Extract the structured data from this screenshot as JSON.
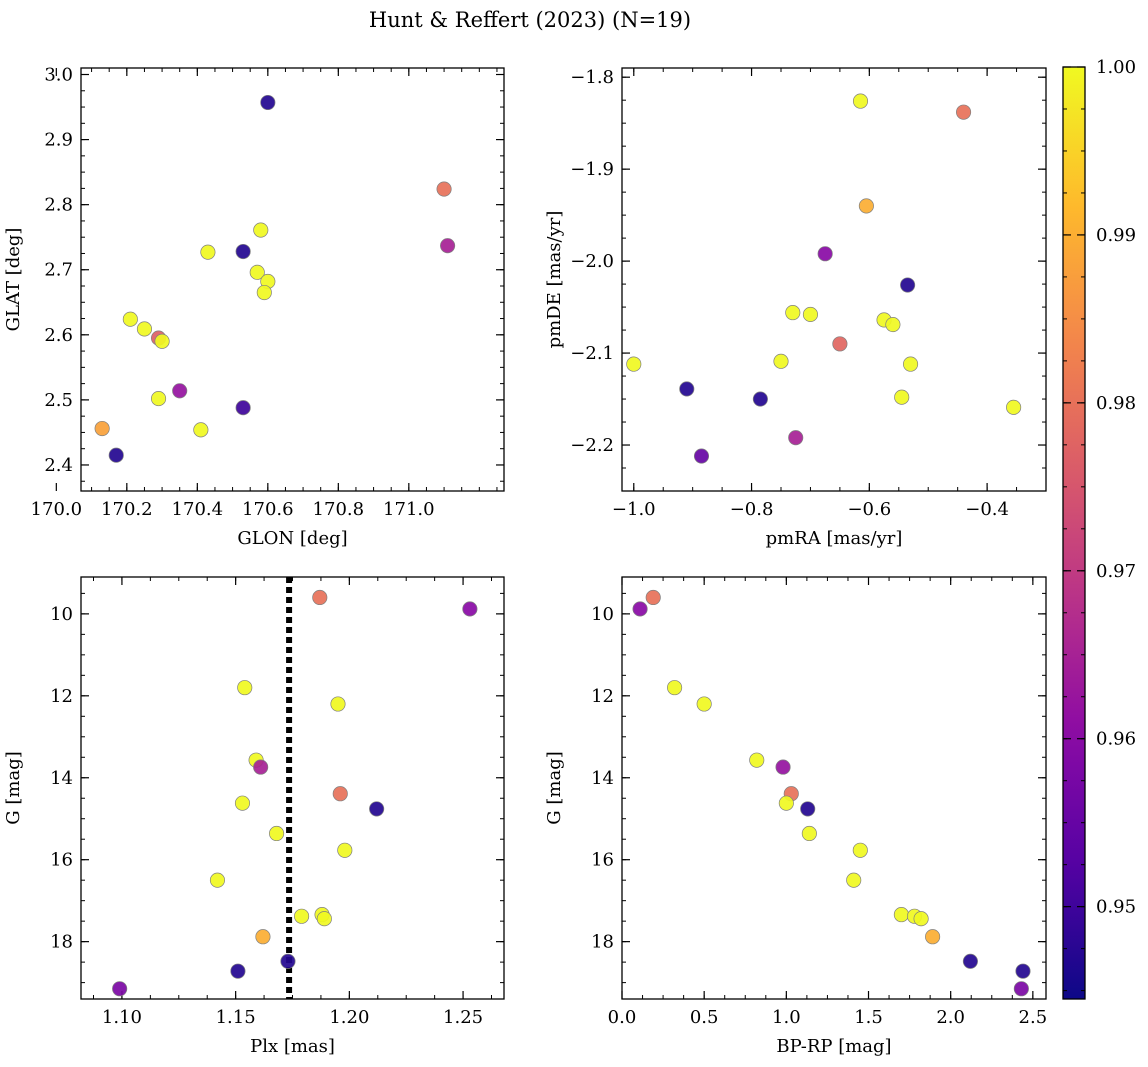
{
  "figure": {
    "title": "Hunt & Reffert (2023) (N=19)"
  },
  "colors": {
    "colormap": "plasma",
    "marker_edge": "#808080",
    "reference_line": "#000000"
  },
  "colorbar": {
    "vmin": 0.9445,
    "vmax": 1.0,
    "ticks": [
      0.95,
      0.96,
      0.97,
      0.98,
      0.99,
      1.0
    ],
    "tick_labels": [
      "0.95",
      "0.96",
      "0.97",
      "0.98",
      "0.99",
      "1.00"
    ]
  },
  "chart_data": [
    {
      "type": "scatter",
      "title": "",
      "xlabel": "GLON [deg]",
      "ylabel": "GLAT [deg]",
      "xlim": [
        170.07,
        171.27
      ],
      "ylim": [
        2.36,
        3.01
      ],
      "xticks": [
        170.0,
        170.2,
        170.4,
        170.6,
        170.8,
        171.0
      ],
      "xtick_labels": [
        "170.0",
        "170.2",
        "170.4",
        "170.6",
        "170.8",
        "171.0"
      ],
      "yticks": [
        2.4,
        2.5,
        2.6,
        2.7,
        2.8,
        2.9,
        3.0
      ],
      "ytick_labels": [
        "2.4",
        "2.5",
        "2.6",
        "2.7",
        "2.8",
        "2.9",
        "3.0"
      ],
      "grid": false,
      "points": [
        {
          "x": 170.13,
          "y": 2.456,
          "c": 0.988
        },
        {
          "x": 170.17,
          "y": 2.415,
          "c": 0.947
        },
        {
          "x": 170.21,
          "y": 2.624,
          "c": 1.0
        },
        {
          "x": 170.25,
          "y": 2.609,
          "c": 1.0
        },
        {
          "x": 170.29,
          "y": 2.595,
          "c": 0.977
        },
        {
          "x": 170.3,
          "y": 2.59,
          "c": 1.0
        },
        {
          "x": 170.29,
          "y": 2.502,
          "c": 1.0
        },
        {
          "x": 170.35,
          "y": 2.514,
          "c": 0.962
        },
        {
          "x": 170.41,
          "y": 2.454,
          "c": 1.0
        },
        {
          "x": 170.43,
          "y": 2.727,
          "c": 1.0
        },
        {
          "x": 170.53,
          "y": 2.728,
          "c": 0.947
        },
        {
          "x": 170.53,
          "y": 2.488,
          "c": 0.95
        },
        {
          "x": 170.58,
          "y": 2.761,
          "c": 1.0
        },
        {
          "x": 170.57,
          "y": 2.696,
          "c": 1.0
        },
        {
          "x": 170.6,
          "y": 2.682,
          "c": 1.0
        },
        {
          "x": 170.59,
          "y": 2.665,
          "c": 1.0
        },
        {
          "x": 170.6,
          "y": 2.957,
          "c": 0.947
        },
        {
          "x": 171.1,
          "y": 2.824,
          "c": 0.98
        },
        {
          "x": 171.11,
          "y": 2.737,
          "c": 0.965
        }
      ]
    },
    {
      "type": "scatter",
      "title": "",
      "xlabel": "pmRA [mas/yr]",
      "ylabel": "pmDE [mas/yr]",
      "xlim": [
        -1.02,
        -0.3
      ],
      "ylim": [
        -2.25,
        -1.79
      ],
      "xticks": [
        -1.0,
        -0.8,
        -0.6,
        -0.4
      ],
      "xtick_labels": [
        "−1.0",
        "−0.8",
        "−0.6",
        "−0.4"
      ],
      "yticks": [
        -2.2,
        -2.1,
        -2.0,
        -1.9,
        -1.8
      ],
      "ytick_labels": [
        "−2.2",
        "−2.1",
        "−2.0",
        "−1.9",
        "−1.8"
      ],
      "grid": false,
      "points": [
        {
          "x": -1.0,
          "y": -2.112,
          "c": 1.0
        },
        {
          "x": -0.91,
          "y": -2.139,
          "c": 0.947
        },
        {
          "x": -0.885,
          "y": -2.212,
          "c": 0.955
        },
        {
          "x": -0.785,
          "y": -2.15,
          "c": 0.947
        },
        {
          "x": -0.75,
          "y": -2.109,
          "c": 1.0
        },
        {
          "x": -0.73,
          "y": -2.056,
          "c": 1.0
        },
        {
          "x": -0.725,
          "y": -2.192,
          "c": 0.965
        },
        {
          "x": -0.7,
          "y": -2.058,
          "c": 1.0
        },
        {
          "x": -0.675,
          "y": -1.992,
          "c": 0.96
        },
        {
          "x": -0.65,
          "y": -2.09,
          "c": 0.978
        },
        {
          "x": -0.615,
          "y": -1.826,
          "c": 1.0
        },
        {
          "x": -0.605,
          "y": -1.94,
          "c": 0.99
        },
        {
          "x": -0.575,
          "y": -2.064,
          "c": 1.0
        },
        {
          "x": -0.56,
          "y": -2.069,
          "c": 1.0
        },
        {
          "x": -0.545,
          "y": -2.148,
          "c": 1.0
        },
        {
          "x": -0.535,
          "y": -2.026,
          "c": 0.947
        },
        {
          "x": -0.53,
          "y": -2.112,
          "c": 1.0
        },
        {
          "x": -0.44,
          "y": -1.838,
          "c": 0.98
        },
        {
          "x": -0.355,
          "y": -2.159,
          "c": 1.0
        }
      ]
    },
    {
      "type": "scatter",
      "title": "",
      "xlabel": "Plx [mas]",
      "ylabel": "G [mag]",
      "xlim": [
        1.082,
        1.268
      ],
      "ylim": [
        19.4,
        9.1
      ],
      "y_inverted": true,
      "xticks": [
        1.1,
        1.15,
        1.2,
        1.25
      ],
      "xtick_labels": [
        "1.10",
        "1.15",
        "1.20",
        "1.25"
      ],
      "yticks": [
        10,
        12,
        14,
        16,
        18
      ],
      "ytick_labels": [
        "10",
        "12",
        "14",
        "16",
        "18"
      ],
      "grid": false,
      "reference_line": {
        "orientation": "vertical",
        "x": 1.1735,
        "style": "dotted"
      },
      "points": [
        {
          "x": 1.187,
          "y": 9.6,
          "c": 0.98
        },
        {
          "x": 1.253,
          "y": 9.88,
          "c": 0.96
        },
        {
          "x": 1.154,
          "y": 11.8,
          "c": 1.0
        },
        {
          "x": 1.195,
          "y": 12.2,
          "c": 1.0
        },
        {
          "x": 1.159,
          "y": 13.57,
          "c": 1.0
        },
        {
          "x": 1.161,
          "y": 13.74,
          "c": 0.965
        },
        {
          "x": 1.196,
          "y": 14.39,
          "c": 0.98
        },
        {
          "x": 1.153,
          "y": 14.62,
          "c": 1.0
        },
        {
          "x": 1.212,
          "y": 14.76,
          "c": 0.947
        },
        {
          "x": 1.168,
          "y": 15.36,
          "c": 1.0
        },
        {
          "x": 1.198,
          "y": 15.77,
          "c": 1.0
        },
        {
          "x": 1.142,
          "y": 16.5,
          "c": 1.0
        },
        {
          "x": 1.179,
          "y": 17.38,
          "c": 1.0
        },
        {
          "x": 1.188,
          "y": 17.34,
          "c": 1.0
        },
        {
          "x": 1.189,
          "y": 17.44,
          "c": 1.0
        },
        {
          "x": 1.162,
          "y": 17.88,
          "c": 0.99
        },
        {
          "x": 1.173,
          "y": 18.48,
          "c": 0.947
        },
        {
          "x": 1.151,
          "y": 18.72,
          "c": 0.947
        },
        {
          "x": 1.099,
          "y": 19.15,
          "c": 0.958
        }
      ]
    },
    {
      "type": "scatter",
      "title": "",
      "xlabel": "BP-RP [mag]",
      "ylabel": "G [mag]",
      "xlim": [
        0.0,
        2.58
      ],
      "ylim": [
        19.4,
        9.1
      ],
      "y_inverted": true,
      "xticks": [
        0.0,
        0.5,
        1.0,
        1.5,
        2.0,
        2.5
      ],
      "xtick_labels": [
        "0.0",
        "0.5",
        "1.0",
        "1.5",
        "2.0",
        "2.5"
      ],
      "yticks": [
        10,
        12,
        14,
        16,
        18
      ],
      "ytick_labels": [
        "10",
        "12",
        "14",
        "16",
        "18"
      ],
      "grid": false,
      "points": [
        {
          "x": 0.11,
          "y": 9.88,
          "c": 0.96
        },
        {
          "x": 0.19,
          "y": 9.6,
          "c": 0.98
        },
        {
          "x": 0.32,
          "y": 11.8,
          "c": 1.0
        },
        {
          "x": 0.5,
          "y": 12.2,
          "c": 1.0
        },
        {
          "x": 0.82,
          "y": 13.57,
          "c": 1.0
        },
        {
          "x": 0.98,
          "y": 13.74,
          "c": 0.962
        },
        {
          "x": 1.03,
          "y": 14.39,
          "c": 0.98
        },
        {
          "x": 1.0,
          "y": 14.62,
          "c": 1.0
        },
        {
          "x": 1.13,
          "y": 14.76,
          "c": 0.947
        },
        {
          "x": 1.14,
          "y": 15.36,
          "c": 1.0
        },
        {
          "x": 1.45,
          "y": 15.77,
          "c": 1.0
        },
        {
          "x": 1.41,
          "y": 16.5,
          "c": 1.0
        },
        {
          "x": 1.7,
          "y": 17.34,
          "c": 1.0
        },
        {
          "x": 1.78,
          "y": 17.38,
          "c": 1.0
        },
        {
          "x": 1.82,
          "y": 17.44,
          "c": 1.0
        },
        {
          "x": 1.89,
          "y": 17.88,
          "c": 0.99
        },
        {
          "x": 2.12,
          "y": 18.48,
          "c": 0.947
        },
        {
          "x": 2.44,
          "y": 18.72,
          "c": 0.947
        },
        {
          "x": 2.43,
          "y": 19.15,
          "c": 0.958
        }
      ]
    }
  ]
}
